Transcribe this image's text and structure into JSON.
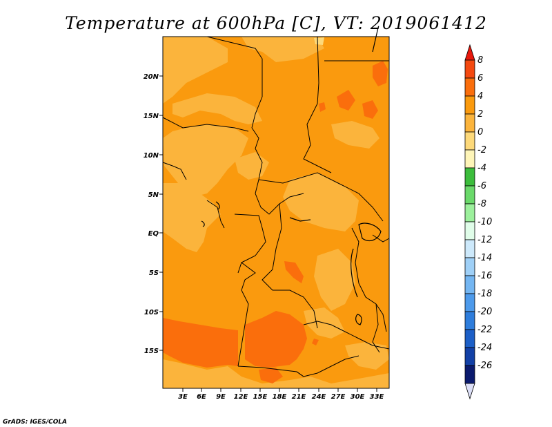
{
  "title": "Temperature at 600hPa [C], VT: 2019061412",
  "credit": "GrADS: IGES/COLA",
  "map": {
    "x_tick_labels": [
      "3E",
      "6E",
      "9E",
      "12E",
      "15E",
      "18E",
      "21E",
      "24E",
      "27E",
      "30E",
      "33E"
    ],
    "y_tick_labels": [
      "20N",
      "15N",
      "10N",
      "5N",
      "EQ",
      "5S",
      "10S",
      "15S"
    ],
    "extent": {
      "lon": [
        0.5,
        35.2
      ],
      "lat": [
        -19.8,
        24.5
      ]
    },
    "region_fill_levels": [
      "0 to 2",
      "2 to 4",
      "4 to 6"
    ]
  },
  "colorbar": {
    "labels": [
      "8",
      "6",
      "4",
      "2",
      "0",
      "-2",
      "-4",
      "-6",
      "-8",
      "-10",
      "-12",
      "-14",
      "-16",
      "-18",
      "-20",
      "-22",
      "-24",
      "-26"
    ],
    "colors": [
      "#e8180c",
      "#f44910",
      "#fa6e0c",
      "#fa9a0e",
      "#fbb43c",
      "#fdd97a",
      "#fef5b8",
      "#3cbd3c",
      "#6ad96a",
      "#9cf09c",
      "#e0fde9",
      "#cde9fb",
      "#9fd0f7",
      "#74b6f2",
      "#4d9aeb",
      "#2e7ddc",
      "#1c5fc7",
      "#1240a6",
      "#0a1a6e",
      "#dcdff7"
    ]
  }
}
